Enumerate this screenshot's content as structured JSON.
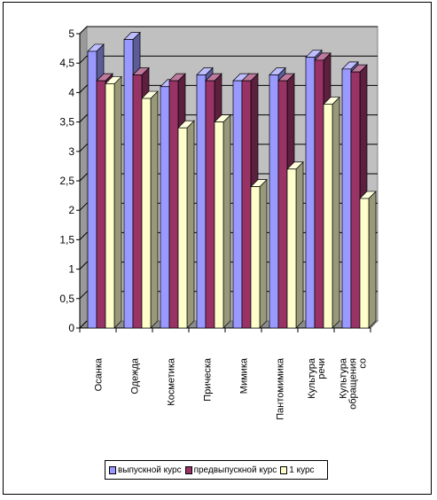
{
  "chart_data": {
    "type": "bar",
    "categories": [
      "Осанка",
      "Одежда",
      "Косметика",
      "Прическа",
      "Мимика",
      "Пантомимика",
      "Культура речи",
      "Культура обращения со"
    ],
    "category_lines": [
      [
        "Осанка"
      ],
      [
        "Одежда"
      ],
      [
        "Косметика"
      ],
      [
        "Прическа"
      ],
      [
        "Мимика"
      ],
      [
        "Пантомимика"
      ],
      [
        "Культура",
        "речи"
      ],
      [
        "Культура",
        "обращения",
        "со"
      ]
    ],
    "series": [
      {
        "name": "выпускной курс",
        "color": "#9999ff",
        "values": [
          4.7,
          4.9,
          4.1,
          4.3,
          4.2,
          4.3,
          4.6,
          4.4
        ]
      },
      {
        "name": "предвыпускной курс",
        "color": "#993366",
        "values": [
          4.2,
          4.3,
          4.2,
          4.2,
          4.2,
          4.2,
          4.55,
          4.35
        ]
      },
      {
        "name": "1 курс",
        "color": "#ffffcc",
        "values": [
          4.15,
          3.9,
          3.4,
          3.5,
          2.4,
          2.7,
          3.8,
          2.2
        ]
      }
    ],
    "y_ticks": [
      "0",
      "0,5",
      "1",
      "1,5",
      "2",
      "2,5",
      "3",
      "3,5",
      "4",
      "4,5",
      "5"
    ],
    "ylim": [
      0,
      5
    ],
    "grid": true,
    "wall_color": "#c0c0c0",
    "legend_position": "bottom",
    "title": "",
    "xlabel": "",
    "ylabel": ""
  }
}
